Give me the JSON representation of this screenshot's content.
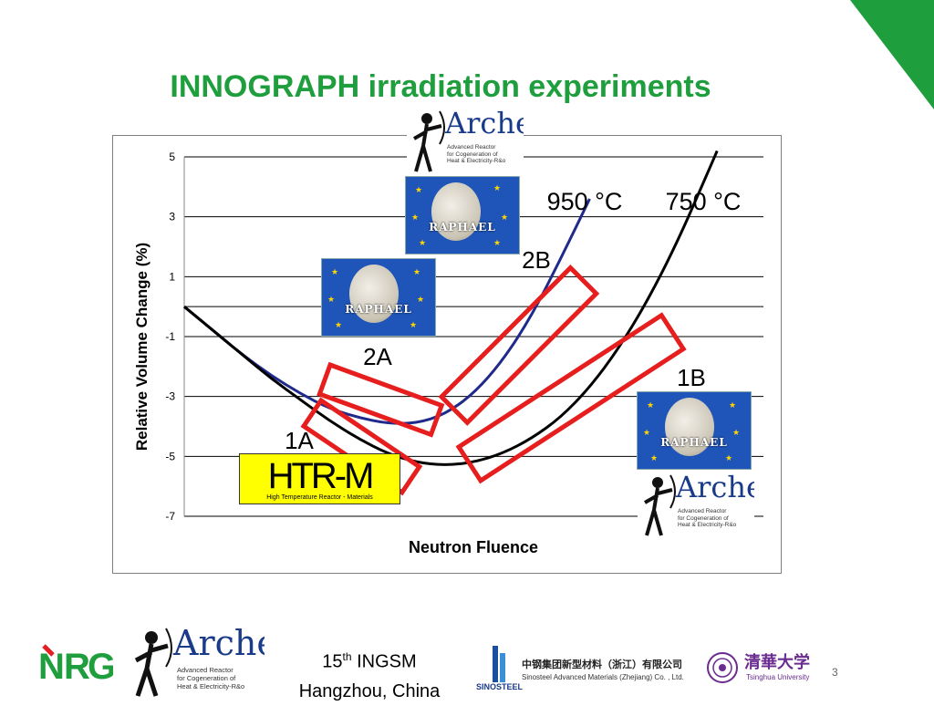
{
  "slide": {
    "title": "INNOGRAPH irradiation experiments",
    "page_number": "3",
    "footer_line1_pre": "15",
    "footer_line1_sup": "th",
    "footer_line1_post": " INGSM",
    "footer_line2": "Hangzhou, China",
    "accent_color": "#1e9e3c"
  },
  "logos": {
    "archer": {
      "name": "Archer",
      "subtitle_1": "Advanced Reactor",
      "subtitle_2": "for Cogeneration of",
      "subtitle_3": "Heat & Electricity-R&o"
    },
    "raphael": {
      "name": "RAPHAEL"
    },
    "htrm": {
      "name": "HTR-M",
      "subtitle": "High Temperature Reactor - Materials"
    },
    "nrg": {
      "name": "NRG"
    },
    "sinosteel": {
      "name": "SINOSTEEL",
      "chinese": "中钢集团新型材料（浙江）有限公司",
      "english": "Sinosteel Advanced Materials (Zhejiang) Co. , Ltd."
    },
    "tsinghua": {
      "chinese": "清華大学",
      "english": "Tsinghua University"
    }
  },
  "chart_data": {
    "type": "line",
    "xlabel": "Neutron Fluence",
    "ylabel": "Relative Volume Change (%)",
    "ylim": [
      -7,
      5
    ],
    "yticks": [
      5,
      3,
      1,
      -1,
      -3,
      -5,
      -7
    ],
    "grid": true,
    "series": [
      {
        "name": "950 °C",
        "color": "#1f2a8a",
        "points": [
          [
            0,
            0
          ],
          [
            0.05,
            -0.8
          ],
          [
            0.1,
            -1.6
          ],
          [
            0.15,
            -2.3
          ],
          [
            0.2,
            -2.9
          ],
          [
            0.25,
            -3.4
          ],
          [
            0.3,
            -3.7
          ],
          [
            0.35,
            -3.9
          ],
          [
            0.4,
            -3.9
          ],
          [
            0.45,
            -3.6
          ],
          [
            0.5,
            -2.9
          ],
          [
            0.55,
            -1.8
          ],
          [
            0.6,
            -0.3
          ],
          [
            0.65,
            1.6
          ],
          [
            0.7,
            3.6
          ]
        ]
      },
      {
        "name": "750 °C",
        "color": "#000000",
        "points": [
          [
            0,
            0
          ],
          [
            0.05,
            -0.8
          ],
          [
            0.1,
            -1.6
          ],
          [
            0.15,
            -2.4
          ],
          [
            0.2,
            -3.1
          ],
          [
            0.25,
            -3.8
          ],
          [
            0.3,
            -4.4
          ],
          [
            0.35,
            -4.9
          ],
          [
            0.4,
            -5.2
          ],
          [
            0.45,
            -5.3
          ],
          [
            0.5,
            -5.2
          ],
          [
            0.55,
            -4.9
          ],
          [
            0.6,
            -4.4
          ],
          [
            0.65,
            -3.7
          ],
          [
            0.7,
            -2.7
          ],
          [
            0.75,
            -1.4
          ],
          [
            0.8,
            0.2
          ],
          [
            0.85,
            2.1
          ],
          [
            0.9,
            4.3
          ],
          [
            0.92,
            5.2
          ]
        ]
      }
    ],
    "annotations": [
      "950 °C",
      "750 °C",
      "1A",
      "1B",
      "2A",
      "2B"
    ]
  }
}
